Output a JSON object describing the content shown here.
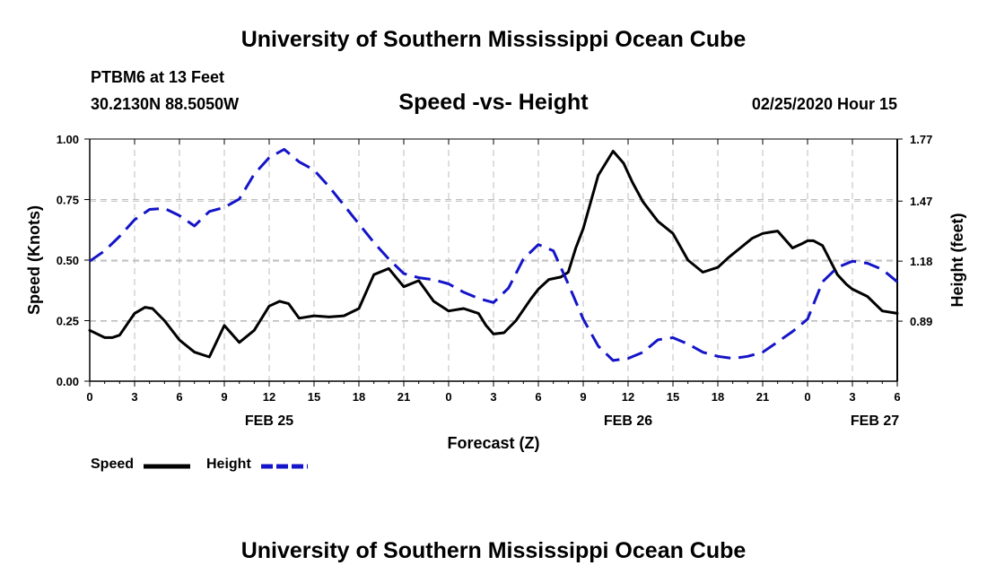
{
  "header": {
    "title": "University of Southern Mississippi Ocean Cube",
    "station": "PTBM6 at 13 Feet",
    "coords": "30.2130N 88.5050W",
    "chart_title": "Speed -vs- Height",
    "date": "02/25/2020 Hour 15"
  },
  "footer": {
    "title": "University of Southern Mississippi Ocean Cube"
  },
  "legend": {
    "speed_label": "Speed",
    "height_label": "Height"
  },
  "colors": {
    "speed": "#000000",
    "height": "#1414c8",
    "grid": "#bdbdbd"
  },
  "chart_data": {
    "type": "line",
    "title": "Speed -vs- Height",
    "xlabel": "Forecast (Z)",
    "ylabel": "Speed (Knots)",
    "y2label": "Height (feet)",
    "xlim": [
      0,
      54
    ],
    "ylim": [
      0,
      1.0
    ],
    "y2lim": [
      0.6,
      1.77
    ],
    "x_ticks": [
      0,
      3,
      6,
      9,
      12,
      15,
      18,
      21,
      24,
      27,
      30,
      33,
      36,
      39,
      42,
      45,
      48,
      51,
      54
    ],
    "x_tick_labels": [
      "0",
      "3",
      "6",
      "9",
      "12",
      "15",
      "18",
      "21",
      "0",
      "3",
      "6",
      "9",
      "12",
      "15",
      "18",
      "21",
      "0",
      "3",
      "6"
    ],
    "y_ticks": [
      0,
      0.25,
      0.5,
      0.75,
      1.0
    ],
    "y_tick_labels": [
      "0.00",
      "0.25",
      "0.50",
      "0.75",
      "1.00"
    ],
    "y2_ticks": [
      0.89,
      1.18,
      1.47,
      1.77
    ],
    "y2_tick_labels": [
      "0.89",
      "1.18",
      "1.47",
      "1.77"
    ],
    "day_labels": [
      {
        "x": 12,
        "label": "FEB 25"
      },
      {
        "x": 36,
        "label": "FEB 26"
      },
      {
        "x": 52.5,
        "label": "FEB 27"
      }
    ],
    "grid": true,
    "series": [
      {
        "name": "Speed",
        "axis": "left",
        "style": "solid",
        "x": [
          0,
          1,
          1.5,
          2,
          3,
          3.7,
          4.2,
          5,
          6,
          7,
          8,
          9,
          10,
          11,
          12,
          12.7,
          13.3,
          14,
          15,
          16,
          17,
          18,
          19,
          20,
          21,
          22,
          23,
          24,
          25,
          26,
          26.5,
          27,
          27.7,
          28.5,
          29.5,
          30,
          30.7,
          31.5,
          32,
          32.5,
          33,
          34,
          35,
          35.7,
          36.3,
          37,
          38,
          39,
          40,
          41,
          42,
          42.7,
          43.5,
          44.3,
          45,
          45.5,
          46,
          47,
          47.7,
          48,
          48.4,
          49,
          50,
          50.6,
          51,
          52,
          53,
          54
        ],
        "values": [
          0.21,
          0.18,
          0.18,
          0.19,
          0.28,
          0.305,
          0.3,
          0.25,
          0.17,
          0.12,
          0.1,
          0.23,
          0.16,
          0.21,
          0.31,
          0.33,
          0.32,
          0.26,
          0.27,
          0.265,
          0.27,
          0.3,
          0.44,
          0.465,
          0.39,
          0.415,
          0.33,
          0.29,
          0.3,
          0.28,
          0.23,
          0.195,
          0.2,
          0.25,
          0.34,
          0.38,
          0.42,
          0.43,
          0.45,
          0.55,
          0.63,
          0.85,
          0.95,
          0.9,
          0.82,
          0.74,
          0.66,
          0.61,
          0.5,
          0.45,
          0.47,
          0.51,
          0.55,
          0.59,
          0.61,
          0.615,
          0.62,
          0.55,
          0.57,
          0.58,
          0.58,
          0.56,
          0.44,
          0.4,
          0.38,
          0.35,
          0.29,
          0.28
        ]
      },
      {
        "name": "Height",
        "axis": "right",
        "style": "dashed",
        "x": [
          0,
          1,
          2,
          3,
          4,
          5,
          6,
          7,
          8,
          9,
          10,
          11,
          12,
          13,
          14,
          15,
          16,
          17,
          18,
          19,
          20,
          21,
          22,
          23,
          24,
          25,
          26,
          27,
          28,
          29,
          30,
          31,
          32,
          33,
          34,
          35,
          36,
          37,
          38,
          39,
          40,
          41,
          42,
          43,
          44,
          45,
          46,
          47,
          48,
          49,
          50,
          51,
          52,
          53,
          54
        ],
        "values": [
          1.18,
          1.23,
          1.3,
          1.38,
          1.43,
          1.435,
          1.4,
          1.35,
          1.42,
          1.44,
          1.48,
          1.6,
          1.68,
          1.72,
          1.66,
          1.62,
          1.54,
          1.45,
          1.36,
          1.27,
          1.19,
          1.12,
          1.1,
          1.09,
          1.07,
          1.03,
          1.0,
          0.98,
          1.05,
          1.19,
          1.26,
          1.23,
          1.07,
          0.9,
          0.77,
          0.7,
          0.71,
          0.74,
          0.8,
          0.81,
          0.78,
          0.74,
          0.72,
          0.71,
          0.72,
          0.74,
          0.79,
          0.84,
          0.9,
          1.08,
          1.15,
          1.18,
          1.17,
          1.14,
          1.08
        ]
      }
    ]
  }
}
